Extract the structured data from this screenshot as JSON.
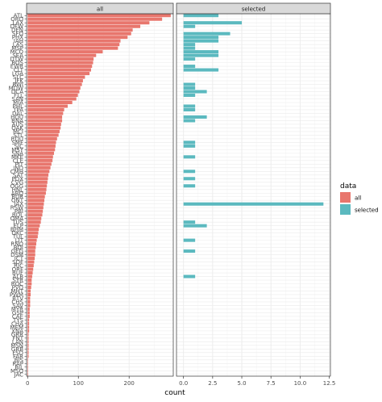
{
  "chart_data": {
    "type": "bar",
    "orientation": "horizontal",
    "faceted": true,
    "title": "",
    "xlabel": "count",
    "ylabel": "",
    "grid": true,
    "legend_placement": "right",
    "panels": [
      {
        "strip": "all",
        "xlim": [
          -2,
          287
        ],
        "x_ticks": [
          0,
          100,
          200
        ],
        "series": "all",
        "categories": [
          "ATL",
          "ORD",
          "LAX",
          "DFW",
          "DEN",
          "SFO",
          "PHX",
          "IAH",
          "LAS",
          "MSP",
          "MCO",
          "SEA",
          "DTW",
          "BOS",
          "EWR",
          "CLT",
          "LGA",
          "SLC",
          "JFK",
          "BWI",
          "MDW",
          "DCA",
          "FLL",
          "SAN",
          "MIA",
          "PHL",
          "TPA",
          "DAL",
          "HOU",
          "BNA",
          "AUS",
          "OAK",
          "MCI",
          "STL",
          "RDU",
          "SMF",
          "SJC",
          "MSY",
          "SNA",
          "MKE",
          "CLE",
          "PIT",
          "IND",
          "CMH",
          "SAT",
          "PDX",
          "CVG",
          "OGG",
          "HNL",
          "ABQ",
          "BUR",
          "ONT",
          "JAX",
          "RSW",
          "PBI",
          "BDL",
          "OMA",
          "TUS",
          "ELP",
          "BHM",
          "OKC",
          "TUL",
          "LIT",
          "RNO",
          "BOI",
          "GEG",
          "DSM",
          "ICT",
          "SDF",
          "RIC",
          "ORF",
          "BUF",
          "ALB",
          "SYR",
          "ROC",
          "PVD",
          "MHT",
          "PWM",
          "BTV",
          "CHS",
          "SAV",
          "MYR",
          "GSP",
          "CAE",
          "TYS",
          "CHA",
          "MEM",
          "XNA",
          "GRR",
          "FNT",
          "LAN",
          "MSN",
          "GRB",
          "FSD",
          "FAR",
          "BIS",
          "RAP",
          "BIL",
          "MSO",
          "JAC"
        ],
        "values": [
          282,
          265,
          240,
          222,
          207,
          204,
          197,
          183,
          181,
          178,
          148,
          135,
          130,
          129,
          127,
          125,
          122,
          113,
          109,
          107,
          104,
          102,
          99,
          96,
          88,
          79,
          72,
          70,
          68,
          68,
          66,
          65,
          63,
          61,
          58,
          56,
          55,
          54,
          52,
          50,
          49,
          47,
          45,
          43,
          41,
          40,
          39,
          38,
          37,
          36,
          34,
          33,
          32,
          31,
          30,
          29,
          27,
          26,
          24,
          22,
          21,
          20,
          18,
          17,
          16,
          15,
          15,
          14,
          13,
          12,
          11,
          10,
          9,
          8,
          8,
          7,
          6,
          6,
          5,
          5,
          5,
          4,
          4,
          4,
          3,
          3,
          3,
          3,
          2,
          2,
          2,
          2,
          2,
          2,
          2,
          1,
          1,
          1,
          1,
          1
        ]
      },
      {
        "strip": "selected",
        "xlim": [
          -0.6,
          12.6
        ],
        "x_ticks": [
          0.0,
          2.5,
          5.0,
          7.5,
          10.0,
          12.5
        ],
        "x_tick_labels": [
          "0.0",
          "2.5",
          "5.0",
          "7.5",
          "10.0",
          "12.5"
        ],
        "series": "selected",
        "values": [
          3,
          0,
          5,
          1,
          0,
          4,
          3,
          3,
          1,
          1,
          3,
          3,
          1,
          0,
          1,
          3,
          0,
          0,
          0,
          1,
          1,
          2,
          1,
          0,
          0,
          1,
          1,
          0,
          2,
          1,
          0,
          0,
          0,
          0,
          0,
          1,
          1,
          0,
          0,
          1,
          0,
          0,
          0,
          1,
          0,
          1,
          0,
          1,
          0,
          0,
          0,
          0,
          12,
          0,
          0,
          0,
          0,
          1,
          2,
          0,
          0,
          0,
          1,
          0,
          0,
          1,
          0,
          0,
          0,
          0,
          0,
          0,
          1,
          0,
          0,
          0,
          0,
          0,
          0,
          0,
          0,
          0,
          0,
          0,
          0,
          0,
          0,
          0,
          0,
          0,
          0,
          0,
          0,
          0,
          0,
          0,
          0,
          0,
          0,
          0
        ]
      }
    ],
    "legend": {
      "title": "data",
      "entries": [
        {
          "name": "all",
          "color": "#E8766D"
        },
        {
          "name": "selected",
          "color": "#5BB9BF"
        }
      ]
    },
    "colors": {
      "strip_bg": "#d9d9d9",
      "panel_border": "#333333",
      "grid_major": "#ebebeb",
      "grid_minor": "#f5f5f5",
      "text": "#4d4d4d"
    }
  }
}
